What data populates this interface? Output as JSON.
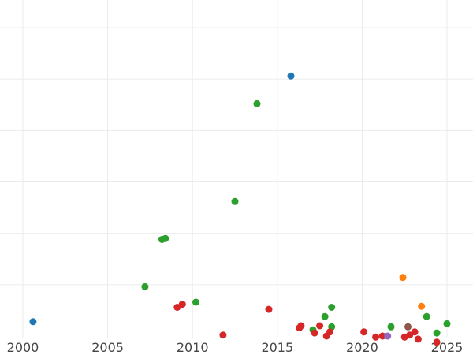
{
  "chart_data": {
    "type": "scatter",
    "title": "",
    "xlabel": "",
    "ylabel": "",
    "xlim": [
      1999.0,
      2026.5
    ],
    "ylim": [
      0,
      31
    ],
    "grid": true,
    "x_ticks": [
      2000,
      2005,
      2010,
      2015,
      2020,
      2025
    ],
    "x_tick_labels": [
      "2000",
      "2005",
      "2010",
      "2015",
      "2020",
      "2025"
    ],
    "y_gridlines": [
      5,
      10,
      15,
      20,
      25,
      30
    ],
    "y_tick_labels": [],
    "series": [
      {
        "color": "#1f77b4",
        "points": [
          {
            "x": 2000.6,
            "y": 1.4
          },
          {
            "x": 2015.8,
            "y": 25.3
          }
        ]
      },
      {
        "color": "#2ca02c",
        "points": [
          {
            "x": 2007.2,
            "y": 4.8
          },
          {
            "x": 2008.2,
            "y": 9.4
          },
          {
            "x": 2008.4,
            "y": 9.5
          },
          {
            "x": 2010.2,
            "y": 3.3
          },
          {
            "x": 2012.5,
            "y": 13.1
          },
          {
            "x": 2013.8,
            "y": 22.6
          },
          {
            "x": 2017.1,
            "y": 0.6
          },
          {
            "x": 2017.8,
            "y": 1.9
          },
          {
            "x": 2018.2,
            "y": 2.8
          },
          {
            "x": 2018.2,
            "y": 0.9
          },
          {
            "x": 2021.7,
            "y": 0.9
          },
          {
            "x": 2023.8,
            "y": 1.9
          },
          {
            "x": 2024.4,
            "y": 0.3
          },
          {
            "x": 2025.0,
            "y": 1.2
          }
        ]
      },
      {
        "color": "#d62728",
        "points": [
          {
            "x": 2009.1,
            "y": 2.8
          },
          {
            "x": 2009.4,
            "y": 3.1
          },
          {
            "x": 2011.8,
            "y": 0.1
          },
          {
            "x": 2014.5,
            "y": 2.6
          },
          {
            "x": 2016.3,
            "y": 0.8
          },
          {
            "x": 2016.4,
            "y": 1.0
          },
          {
            "x": 2017.2,
            "y": 0.3
          },
          {
            "x": 2017.5,
            "y": 1.0
          },
          {
            "x": 2017.9,
            "y": 0.0
          },
          {
            "x": 2018.1,
            "y": 0.4
          },
          {
            "x": 2020.1,
            "y": 0.4
          },
          {
            "x": 2020.8,
            "y": -0.1
          },
          {
            "x": 2021.2,
            "y": 0.0
          },
          {
            "x": 2022.5,
            "y": -0.1
          },
          {
            "x": 2022.8,
            "y": 0.1
          },
          {
            "x": 2023.1,
            "y": 0.4
          },
          {
            "x": 2023.3,
            "y": -0.3
          },
          {
            "x": 2024.4,
            "y": -0.6
          }
        ]
      },
      {
        "color": "#ff7f0e",
        "points": [
          {
            "x": 2022.4,
            "y": 5.7
          },
          {
            "x": 2023.5,
            "y": 2.9
          }
        ]
      },
      {
        "color": "#8c564b",
        "points": [
          {
            "x": 2022.7,
            "y": 0.9
          }
        ]
      },
      {
        "color": "#9467bd",
        "points": [
          {
            "x": 2021.5,
            "y": 0.0
          }
        ]
      }
    ]
  }
}
